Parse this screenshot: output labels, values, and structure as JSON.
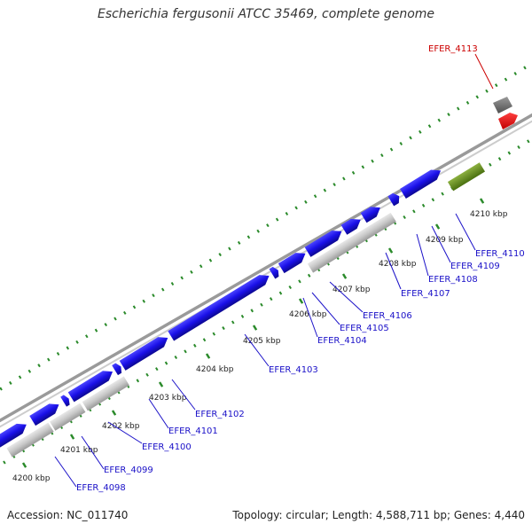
{
  "title": "Escherichia fergusonii ATCC 35469, complete genome",
  "footer": {
    "accession": "Accession: NC_011740",
    "stats": "Topology: circular; Length: 4,588,711 bp; Genes: 4,440"
  },
  "colors": {
    "cds": "#1a10e8",
    "rna": "#c8c8c8",
    "highlight_gene": "#e81010",
    "grey_feature": "#707070",
    "green_feature": "#5e8c1e",
    "backbone": "#9a9a9a",
    "tick_green": "#2a8a2a",
    "ruler_label": "#222222",
    "gene_label": "#1a10c8",
    "highlight_label": "#cc0000"
  },
  "ruler": [
    {
      "label": "4200 kbp"
    },
    {
      "label": "4201 kbp"
    },
    {
      "label": "4202 kbp"
    },
    {
      "label": "4203 kbp"
    },
    {
      "label": "4204 kbp"
    },
    {
      "label": "4205 kbp"
    },
    {
      "label": "4206 kbp"
    },
    {
      "label": "4207 kbp"
    },
    {
      "label": "4208 kbp"
    },
    {
      "label": "4209 kbp"
    },
    {
      "label": "4210 kbp"
    }
  ],
  "gene_labels": [
    {
      "label": "EFER_4098"
    },
    {
      "label": "EFER_4099"
    },
    {
      "label": "EFER_4100"
    },
    {
      "label": "EFER_4101"
    },
    {
      "label": "EFER_4102"
    },
    {
      "label": "EFER_4103"
    },
    {
      "label": "EFER_4104"
    },
    {
      "label": "EFER_4105"
    },
    {
      "label": "EFER_4106"
    },
    {
      "label": "EFER_4107"
    },
    {
      "label": "EFER_4108"
    },
    {
      "label": "EFER_4109"
    },
    {
      "label": "EFER_4110"
    },
    {
      "label": "EFER_4113"
    }
  ]
}
